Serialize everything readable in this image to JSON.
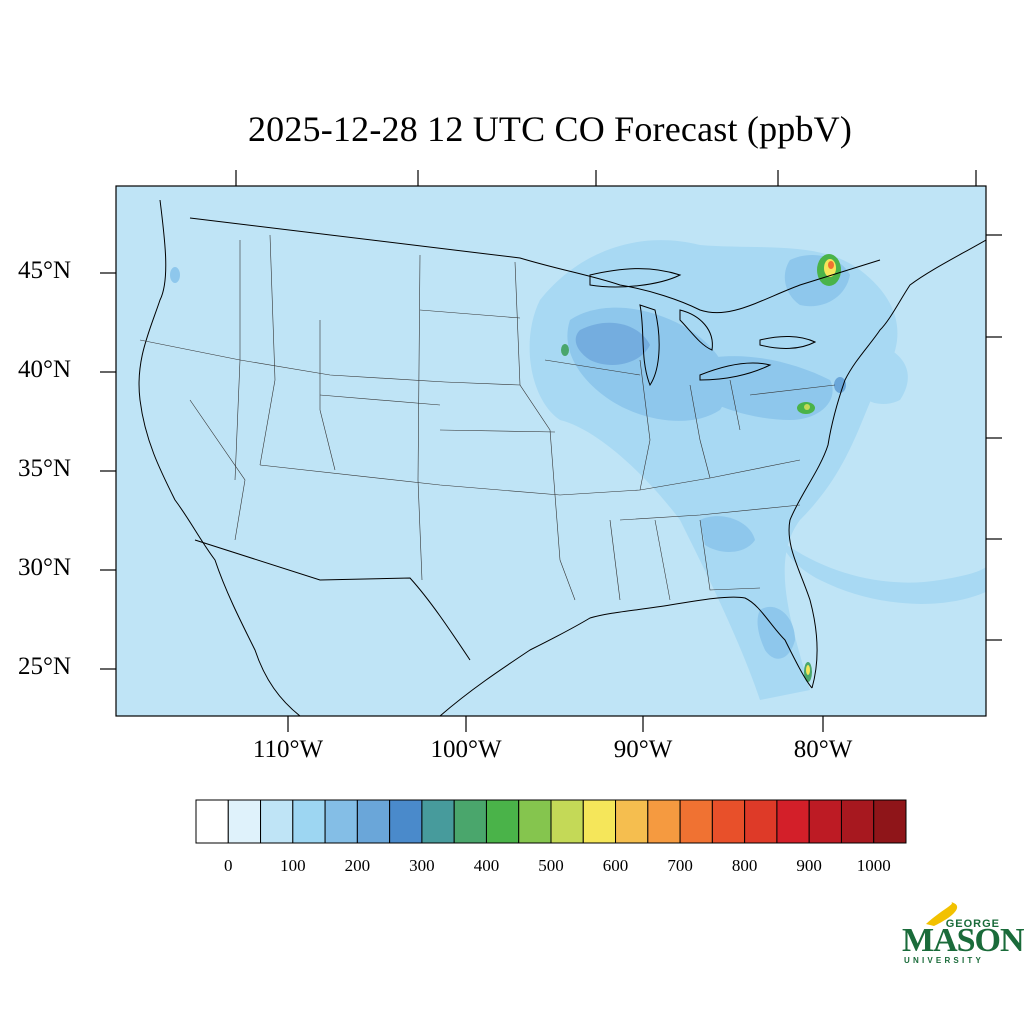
{
  "title": "2025-12-28 12 UTC CO Forecast (ppbV)",
  "map": {
    "lat_labels": [
      "45°N",
      "40°N",
      "35°N",
      "30°N",
      "25°N"
    ],
    "lon_labels": [
      "110°W",
      "100°W",
      "90°W",
      "80°W"
    ],
    "background_color": "#bfe4f6"
  },
  "colorbar": {
    "labels": [
      "0",
      "100",
      "200",
      "300",
      "400",
      "500",
      "600",
      "700",
      "800",
      "900",
      "1000"
    ],
    "colors": [
      "#ffffff",
      "#dff2fb",
      "#bfe4f6",
      "#9dd6f2",
      "#84bee6",
      "#6aa6d9",
      "#4a8acb",
      "#479b9c",
      "#4aa66c",
      "#4ab349",
      "#85c54e",
      "#c4d957",
      "#f5e65a",
      "#f5be4f",
      "#f59a40",
      "#f07232",
      "#e8502a",
      "#de3a28",
      "#d31f29",
      "#bd1b24",
      "#a7181f",
      "#8f1519"
    ]
  },
  "logo": {
    "line1": "GEORGE",
    "line2": "MASON",
    "line3": "UNIVERSITY"
  }
}
